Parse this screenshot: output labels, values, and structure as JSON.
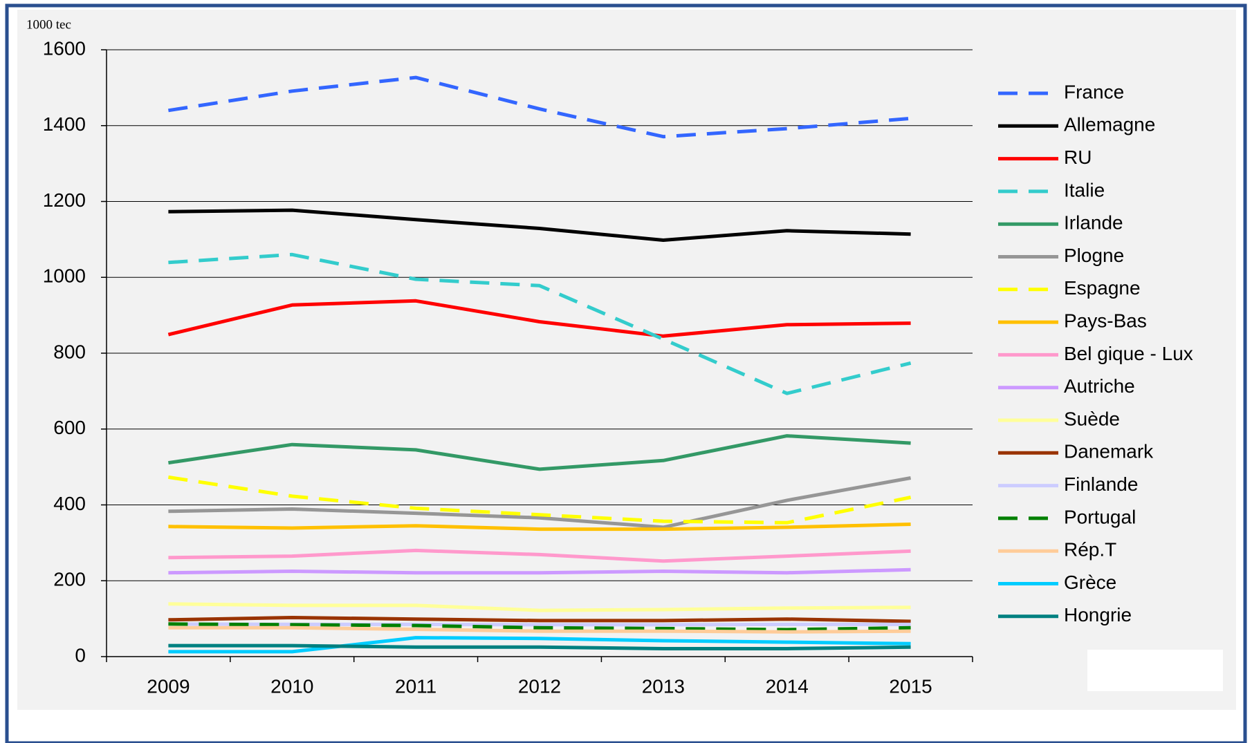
{
  "chart_data": {
    "type": "line",
    "y_unit_label": "1000 tec",
    "categories": [
      "2009",
      "2010",
      "2011",
      "2012",
      "2013",
      "2014",
      "2015"
    ],
    "ylim": [
      0,
      1600
    ],
    "yticks": [
      0,
      200,
      400,
      600,
      800,
      1000,
      1200,
      1400,
      1600
    ],
    "grid": true,
    "legend": "right",
    "series": [
      {
        "name": "France",
        "color": "#3366ff",
        "dashed": true,
        "values": [
          1440,
          1491,
          1527,
          1444,
          1371,
          1392,
          1419
        ]
      },
      {
        "name": "Allemagne",
        "color": "#000000",
        "dashed": false,
        "values": [
          1173,
          1177,
          1152,
          1129,
          1098,
          1123,
          1114
        ]
      },
      {
        "name": "RU",
        "color": "#ff0000",
        "dashed": false,
        "values": [
          849,
          927,
          938,
          883,
          845,
          875,
          879
        ]
      },
      {
        "name": "Italie",
        "color": "#33cccc",
        "dashed": true,
        "values": [
          1039,
          1060,
          995,
          978,
          837,
          694,
          774
        ]
      },
      {
        "name": "Irlande",
        "color": "#339966",
        "dashed": false,
        "values": [
          511,
          559,
          545,
          494,
          517,
          582,
          563
        ]
      },
      {
        "name": "Plogne",
        "color": "#969696",
        "dashed": false,
        "values": [
          383,
          389,
          378,
          366,
          341,
          412,
          471
        ]
      },
      {
        "name": "Espagne",
        "color": "#ffff00",
        "dashed": true,
        "values": [
          473,
          423,
          391,
          374,
          357,
          353,
          420
        ]
      },
      {
        "name": "Pays-Bas",
        "color": "#ffc000",
        "dashed": false,
        "values": [
          343,
          339,
          345,
          336,
          336,
          341,
          349
        ]
      },
      {
        "name": "Bel gique - Lux",
        "color": "#ff99cc",
        "dashed": false,
        "values": [
          261,
          265,
          280,
          269,
          252,
          265,
          278
        ]
      },
      {
        "name": "Autriche",
        "color": "#cc99ff",
        "dashed": false,
        "values": [
          221,
          225,
          221,
          221,
          225,
          221,
          229
        ]
      },
      {
        "name": "Suède",
        "color": "#ffff99",
        "dashed": false,
        "values": [
          139,
          135,
          135,
          122,
          124,
          128,
          130
        ]
      },
      {
        "name": "Danemark",
        "color": "#993300",
        "dashed": false,
        "values": [
          97,
          103,
          99,
          95,
          95,
          99,
          93
        ]
      },
      {
        "name": "Finlande",
        "color": "#ccccff",
        "dashed": false,
        "values": [
          86,
          85,
          85,
          84,
          84,
          85,
          85
        ]
      },
      {
        "name": "Portugal",
        "color": "#008000",
        "dashed": true,
        "values": [
          86,
          84,
          82,
          76,
          74,
          71,
          76
        ]
      },
      {
        "name": "Rép.T",
        "color": "#ffcc99",
        "dashed": false,
        "values": [
          76,
          76,
          72,
          67,
          67,
          65,
          67
        ]
      },
      {
        "name": "Grèce",
        "color": "#00ccff",
        "dashed": false,
        "values": [
          13,
          13,
          50,
          48,
          42,
          38,
          34
        ]
      },
      {
        "name": "Hongrie",
        "color": "#008080",
        "dashed": false,
        "values": [
          29,
          29,
          25,
          25,
          21,
          21,
          25
        ]
      }
    ]
  }
}
